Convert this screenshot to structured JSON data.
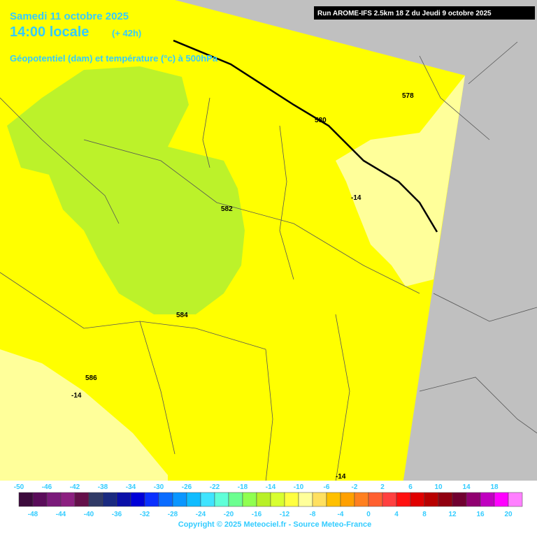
{
  "header": {
    "date": "Samedi 11 octobre 2025",
    "time": "14:00 locale",
    "lead": "(+ 42h)",
    "parameter": "Géopotentiel (dam) et température (°c) à 500hPa",
    "run": "Run AROME-IFS 2.5km 18 Z du Jeudi 9 octobre 2025"
  },
  "contour_labels": [
    "578",
    "580",
    "582",
    "584",
    "586",
    "-14",
    "-14",
    "-14"
  ],
  "colorbar": {
    "labels_top": [
      -50,
      -46,
      -42,
      -38,
      -34,
      -30,
      -26,
      -22,
      -18,
      -14,
      -10,
      -6,
      -2,
      2,
      6,
      10,
      14,
      18
    ],
    "labels_bottom": [
      -48,
      -44,
      -40,
      -36,
      -32,
      -28,
      -24,
      -20,
      -16,
      -12,
      -8,
      -4,
      0,
      4,
      8,
      12,
      16,
      20
    ],
    "colors": [
      "#3c0a3c",
      "#5a0c5a",
      "#7a1a7a",
      "#8c2080",
      "#64104a",
      "#303a66",
      "#1a2a80",
      "#0a10a8",
      "#0000d8",
      "#0a30ff",
      "#0a6cff",
      "#0a96ff",
      "#10bcff",
      "#40e4ff",
      "#60ffd8",
      "#6cff90",
      "#90ff50",
      "#b8f028",
      "#d8ff30",
      "#ffff40",
      "#ffff9a",
      "#ffe060",
      "#ffc000",
      "#ffa000",
      "#ff8020",
      "#ff6030",
      "#ff4040",
      "#ff1010",
      "#e00000",
      "#b80000",
      "#900010",
      "#700030",
      "#900070",
      "#c000c0",
      "#ff00ff",
      "#ff80ff"
    ]
  },
  "copyright": "Copyright © 2025 Meteociel.fr - Source Meteo-France"
}
